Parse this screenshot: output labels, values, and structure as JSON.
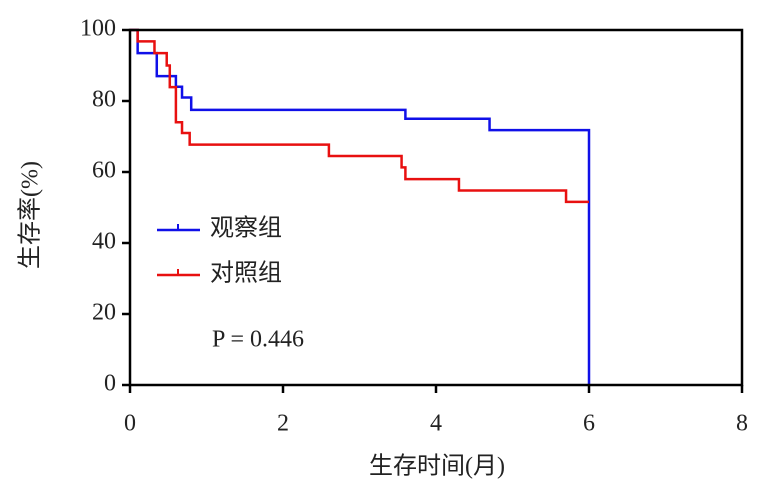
{
  "chart_data": {
    "type": "line",
    "xlabel": "生存时间(月)",
    "ylabel": "生存率(%)",
    "annotation": "P = 0.446",
    "xlim": [
      0,
      8
    ],
    "xticks": [
      0,
      2,
      4,
      6,
      8
    ],
    "ylim": [
      0,
      100
    ],
    "yticks": [
      0,
      20,
      40,
      60,
      80,
      100
    ],
    "legend": "left",
    "series": [
      {
        "name": "观察组",
        "color": "#1010e8",
        "x": [
          0,
          0.1,
          0.1,
          0.35,
          0.35,
          0.6,
          0.6,
          0.68,
          0.68,
          0.8,
          0.8,
          3.6,
          3.6,
          4.7,
          4.7,
          6,
          6
        ],
        "values": [
          100,
          100,
          93.5,
          93.5,
          87,
          87,
          84,
          84,
          81,
          81,
          77.5,
          77.5,
          75,
          75,
          71.8,
          71.8,
          0
        ]
      },
      {
        "name": "对照组",
        "color": "#e81010",
        "x": [
          0,
          0.1,
          0.1,
          0.32,
          0.32,
          0.48,
          0.48,
          0.52,
          0.52,
          0.6,
          0.6,
          0.68,
          0.68,
          0.78,
          0.78,
          2.6,
          2.6,
          3.55,
          3.55,
          3.6,
          3.6,
          4.3,
          4.3,
          5.7,
          5.7,
          6
        ],
        "values": [
          100,
          100,
          96.8,
          96.8,
          93.5,
          93.5,
          90,
          90,
          83.9,
          83.9,
          74,
          74,
          71,
          71,
          67.7,
          67.7,
          64.5,
          64.5,
          61.3,
          61.3,
          58,
          58,
          54.8,
          54.8,
          51.6,
          51.6
        ]
      }
    ]
  }
}
